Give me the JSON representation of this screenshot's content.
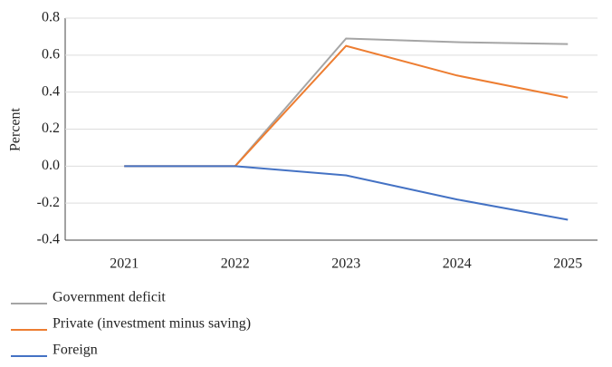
{
  "chart_data": {
    "type": "line",
    "ylabel": "Percent",
    "categories": [
      "2021",
      "2022",
      "2023",
      "2024",
      "2025"
    ],
    "series": [
      {
        "name": "Government deficit",
        "color": "#a5a5a5",
        "values": [
          0,
          0,
          0.69,
          0.67,
          0.66
        ]
      },
      {
        "name": "Private (investment minus saving)",
        "color": "#ed7d31",
        "values": [
          0,
          0,
          0.65,
          0.49,
          0.37
        ]
      },
      {
        "name": "Foreign",
        "color": "#4472c4",
        "values": [
          0,
          0,
          -0.05,
          -0.18,
          -0.29
        ]
      }
    ],
    "ylim": [
      -0.4,
      0.8
    ],
    "yticks": [
      -0.4,
      -0.2,
      {
        "value": 0,
        "label": "0.0"
      },
      0.2,
      0.4,
      0.6,
      0.8
    ],
    "grid": true
  }
}
